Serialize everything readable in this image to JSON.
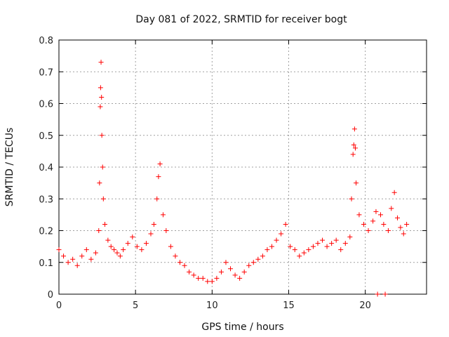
{
  "colors": {
    "marker": "#ff0000",
    "grid": "#a0a0a0",
    "axis": "#000000"
  },
  "chart_data": {
    "type": "scatter",
    "marker": "plus",
    "title": "Day 081 of 2022, SRMTID for receiver bogt",
    "xlabel": "GPS time / hours",
    "ylabel": "SRMTID / TECUs",
    "xlim": [
      0,
      24
    ],
    "ylim": [
      0,
      0.8
    ],
    "xticks": [
      0,
      5,
      10,
      15,
      20
    ],
    "xtick_labels": [
      "0",
      "5",
      "10",
      "15",
      "20"
    ],
    "yticks": [
      0,
      0.1,
      0.2,
      0.3,
      0.4,
      0.5,
      0.6,
      0.7,
      0.8
    ],
    "ytick_labels": [
      "0",
      "0.1",
      "0.2",
      "0.3",
      "0.4",
      "0.5",
      "0.6",
      "0.7",
      "0.8"
    ],
    "grid": true,
    "series": [
      {
        "name": "SRMTID",
        "x": [
          0.0,
          0.3,
          0.6,
          0.9,
          1.2,
          1.5,
          1.8,
          2.1,
          2.4,
          2.6,
          2.65,
          2.7,
          2.72,
          2.75,
          2.78,
          2.8,
          2.85,
          2.9,
          3.0,
          3.2,
          3.4,
          3.6,
          3.8,
          4.0,
          4.2,
          4.5,
          4.8,
          5.1,
          5.4,
          5.7,
          6.0,
          6.2,
          6.4,
          6.5,
          6.6,
          6.8,
          7.0,
          7.3,
          7.6,
          7.9,
          8.2,
          8.5,
          8.8,
          9.1,
          9.4,
          9.7,
          10.0,
          10.3,
          10.6,
          10.9,
          11.2,
          11.5,
          11.8,
          12.1,
          12.4,
          12.7,
          13.0,
          13.3,
          13.6,
          13.9,
          14.2,
          14.5,
          14.8,
          15.1,
          15.4,
          15.7,
          16.0,
          16.3,
          16.6,
          16.9,
          17.2,
          17.5,
          17.8,
          18.1,
          18.4,
          18.7,
          19.0,
          19.1,
          19.2,
          19.25,
          19.3,
          19.35,
          19.4,
          19.6,
          19.9,
          20.2,
          20.5,
          20.7,
          20.8,
          21.0,
          21.2,
          21.3,
          21.5,
          21.7,
          21.9,
          22.1,
          22.3,
          22.5,
          22.7
        ],
        "y": [
          0.14,
          0.12,
          0.1,
          0.11,
          0.09,
          0.12,
          0.14,
          0.11,
          0.13,
          0.2,
          0.35,
          0.59,
          0.65,
          0.73,
          0.62,
          0.5,
          0.4,
          0.3,
          0.22,
          0.17,
          0.15,
          0.14,
          0.13,
          0.12,
          0.14,
          0.16,
          0.18,
          0.15,
          0.14,
          0.16,
          0.19,
          0.22,
          0.3,
          0.37,
          0.41,
          0.25,
          0.2,
          0.15,
          0.12,
          0.1,
          0.09,
          0.07,
          0.06,
          0.05,
          0.05,
          0.04,
          0.04,
          0.05,
          0.07,
          0.1,
          0.08,
          0.06,
          0.05,
          0.07,
          0.09,
          0.1,
          0.11,
          0.12,
          0.14,
          0.15,
          0.17,
          0.19,
          0.22,
          0.15,
          0.14,
          0.12,
          0.13,
          0.14,
          0.15,
          0.16,
          0.17,
          0.15,
          0.16,
          0.17,
          0.14,
          0.16,
          0.18,
          0.3,
          0.44,
          0.47,
          0.52,
          0.46,
          0.35,
          0.25,
          0.22,
          0.2,
          0.23,
          0.26,
          0.0,
          0.25,
          0.22,
          0.0,
          0.2,
          0.27,
          0.32,
          0.24,
          0.21,
          0.19,
          0.22
        ]
      }
    ]
  }
}
